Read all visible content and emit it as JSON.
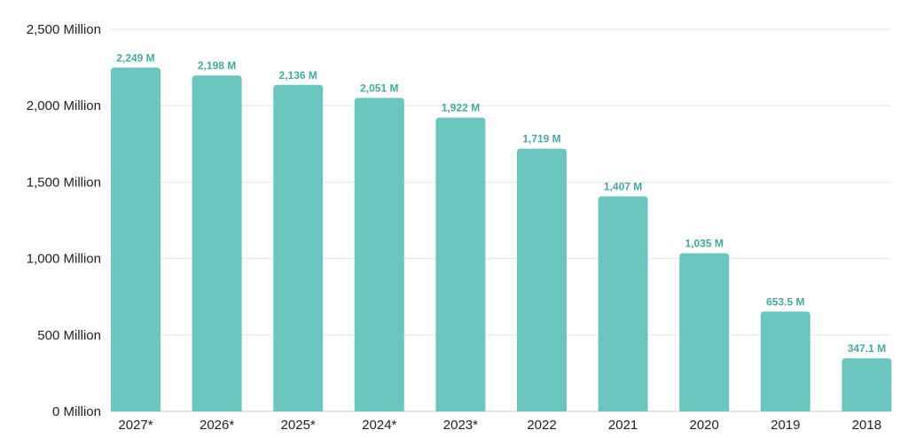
{
  "chart_data": {
    "type": "bar",
    "categories": [
      "2027*",
      "2026*",
      "2025*",
      "2024*",
      "2023*",
      "2022",
      "2021",
      "2020",
      "2019",
      "2018"
    ],
    "values": [
      2249,
      2198,
      2136,
      2051,
      1922,
      1719,
      1407,
      1035,
      653.5,
      347.1
    ],
    "data_labels": [
      "2,249 M",
      "2,198 M",
      "2,136 M",
      "2,051 M",
      "1,922 M",
      "1,719 M",
      "1,407 M",
      "1,035 M",
      "653.5 M",
      "347.1 M"
    ],
    "yticks": [
      0,
      500,
      1000,
      1500,
      2000,
      2500
    ],
    "ytick_labels": [
      "0 Million",
      "500 Million",
      "1,000 Million",
      "1,500 Million",
      "2,000 Million",
      "2,500 Million"
    ],
    "ylim": [
      0,
      2500
    ],
    "grid": true,
    "bar_color": "#6cc6c0",
    "label_color": "#45a9a0"
  }
}
